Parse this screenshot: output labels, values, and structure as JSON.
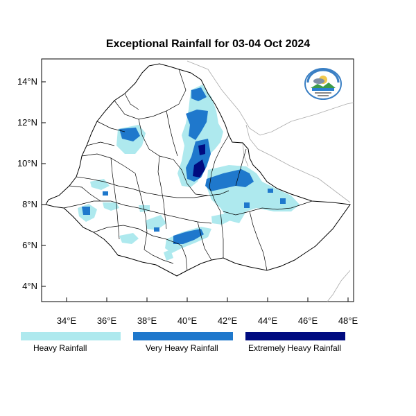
{
  "title": "Exceptional Rainfall for 03-04 Oct 2024",
  "axes": {
    "x_ticks": [
      "34°E",
      "36°E",
      "38°E",
      "40°E",
      "42°E",
      "44°E",
      "46°E",
      "48°E"
    ],
    "y_ticks": [
      "14°N",
      "12°N",
      "10°N",
      "8°N",
      "6°N",
      "4°N"
    ]
  },
  "legend": [
    {
      "label": "Heavy Rainfall",
      "color": "#aee9ee"
    },
    {
      "label": "Very Heavy Rainfall",
      "color": "#1f78cc"
    },
    {
      "label": "Extremely Heavy Rainfall",
      "color": "#000b80"
    }
  ],
  "colors": {
    "heavy": "#aee9ee",
    "very_heavy": "#1f78cc",
    "extreme": "#000b80",
    "boundary": "#000000",
    "neighbor_boundary": "#aaaaaa"
  },
  "logo": {
    "icon": "meteorology-agency-logo"
  }
}
